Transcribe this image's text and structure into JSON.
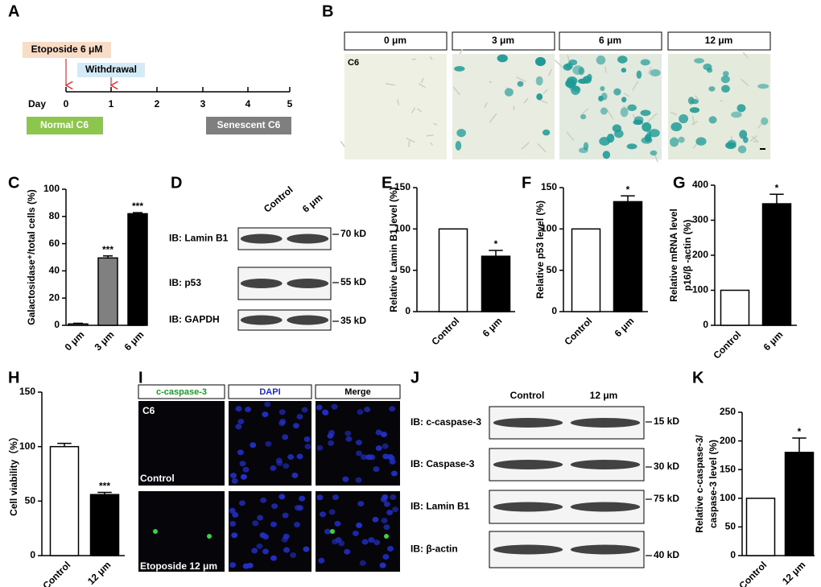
{
  "panel_labels": [
    "A",
    "B",
    "C",
    "D",
    "E",
    "F",
    "G",
    "H",
    "I",
    "J",
    "K"
  ],
  "timeline": {
    "treatment": "Etoposide 6 μM",
    "withdrawal": "Withdrawal",
    "day_label": "Day",
    "days": [
      0,
      1,
      2,
      3,
      4,
      5
    ],
    "start_state": "Normal C6",
    "end_state": "Senescent C6"
  },
  "staining": {
    "columns": [
      "0 μm",
      "3 μm",
      "6 μm",
      "12 μm"
    ],
    "cell_label": "C6"
  },
  "blot_d": {
    "columns": [
      "Control",
      "6 μm"
    ],
    "rows": [
      {
        "label": "IB: Lamin B1",
        "marker": "70 kD"
      },
      {
        "label": "IB: p53",
        "marker": "55 kD"
      },
      {
        "label": "IB: GAPDH",
        "marker": "35 kD"
      }
    ]
  },
  "immunofluorescence": {
    "columns": [
      "c-caspase-3",
      "DAPI",
      "Merge"
    ],
    "cell_label": "C6",
    "rows": [
      "Control",
      "Etoposide 12 μm"
    ]
  },
  "blot_j": {
    "columns": [
      "Control",
      "12 μm"
    ],
    "rows": [
      {
        "label": "IB: c-caspase-3",
        "marker": "15 kD"
      },
      {
        "label": "IB: Caspase-3",
        "marker": "30 kD"
      },
      {
        "label": "IB: Lamin B1",
        "marker": "75 kD"
      },
      {
        "label": "IB: β-actin",
        "marker": "40 kD"
      }
    ]
  },
  "chart_data": [
    {
      "type": "bar",
      "ylabel": [
        "Galactosidase⁺/total cells (%)"
      ],
      "categories": [
        "0 μm",
        "3 μm",
        "6 μm"
      ],
      "values": [
        1,
        49.5,
        82
      ],
      "errors": [
        0.5,
        1.5,
        0.8
      ],
      "colors": [
        "#ffffff",
        "#808080",
        "#000000"
      ],
      "annotations": [
        null,
        "***",
        "***"
      ],
      "ylim": [
        0,
        100
      ],
      "yticks": [
        0,
        20,
        40,
        60,
        80,
        100
      ]
    },
    {
      "type": "bar",
      "ylabel": [
        "Relative Lamin B1 level (%)"
      ],
      "categories": [
        "Control",
        "6 μm"
      ],
      "values": [
        100,
        67
      ],
      "errors": [
        null,
        7
      ],
      "colors": [
        "#ffffff",
        "#000000"
      ],
      "annotations": [
        null,
        "*"
      ],
      "ylim": [
        0,
        150
      ],
      "yticks": [
        0,
        50,
        100,
        150
      ]
    },
    {
      "type": "bar",
      "ylabel": [
        "Relative p53 level (%)"
      ],
      "categories": [
        "Control",
        "6 μm"
      ],
      "values": [
        100,
        133
      ],
      "errors": [
        null,
        7
      ],
      "colors": [
        "#ffffff",
        "#000000"
      ],
      "annotations": [
        null,
        "*"
      ],
      "ylim": [
        0,
        150
      ],
      "yticks": [
        0,
        50,
        100,
        150
      ]
    },
    {
      "type": "bar",
      "ylabel": [
        "Relative mRNA level",
        "p16/β -actin (%)"
      ],
      "categories": [
        "Control",
        "6 μm"
      ],
      "values": [
        100,
        347
      ],
      "errors": [
        null,
        27
      ],
      "colors": [
        "#ffffff",
        "#000000"
      ],
      "annotations": [
        null,
        "*"
      ],
      "ylim": [
        0,
        400
      ],
      "yticks": [
        0,
        100,
        200,
        300,
        400
      ]
    },
    {
      "type": "bar",
      "ylabel": [
        "Cell viability（%）"
      ],
      "categories": [
        "Control",
        "12 μm"
      ],
      "values": [
        100,
        56
      ],
      "errors": [
        3,
        2
      ],
      "colors": [
        "#ffffff",
        "#000000"
      ],
      "annotations": [
        null,
        "***"
      ],
      "ylim": [
        0,
        150
      ],
      "yticks": [
        0,
        50,
        100,
        150
      ]
    },
    {
      "type": "bar",
      "ylabel": [
        "Relative c-caspase-3/",
        "caspase-3 level (%)"
      ],
      "categories": [
        "Control",
        "12 μm"
      ],
      "values": [
        100,
        180
      ],
      "errors": [
        null,
        25
      ],
      "colors": [
        "#ffffff",
        "#000000"
      ],
      "annotations": [
        null,
        "*"
      ],
      "ylim": [
        0,
        250
      ],
      "yticks": [
        0,
        50,
        100,
        150,
        200,
        250
      ]
    }
  ]
}
